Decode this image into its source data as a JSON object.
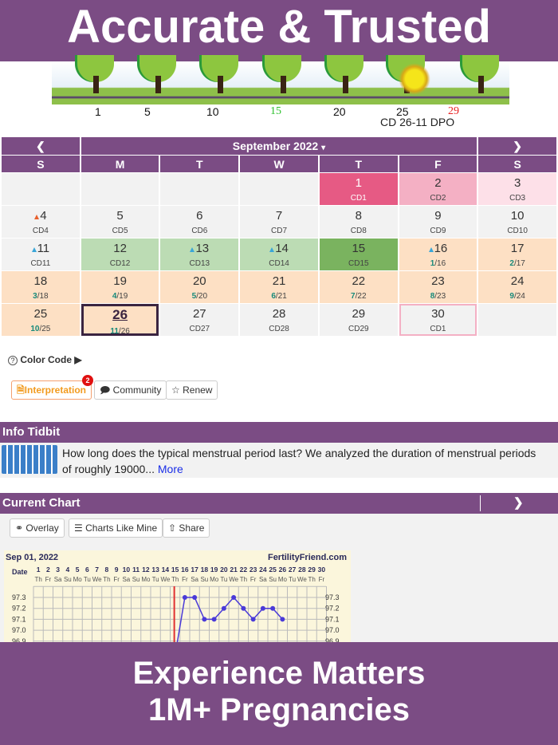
{
  "top_banner": "Accurate & Trusted",
  "bottom_banner": {
    "line1": "Experience Matters",
    "line2": "1M+ Pregnancies"
  },
  "cycle_strip": {
    "day_labels": [
      {
        "v": "1",
        "c": "#111"
      },
      {
        "v": "5",
        "c": "#111"
      },
      {
        "v": "10",
        "c": "#111"
      },
      {
        "v": "15",
        "c": "#2ec02e"
      },
      {
        "v": "20",
        "c": "#111"
      },
      {
        "v": "25",
        "c": "#111"
      },
      {
        "v": "29",
        "c": "#e82020"
      }
    ],
    "status": "CD 26-11 DPO"
  },
  "calendar": {
    "prev_icon": "chevron-left-icon",
    "next_icon": "chevron-right-icon",
    "month": "September 2022",
    "dropdown": "▾",
    "weekdays": [
      "S",
      "M",
      "T",
      "W",
      "T",
      "F",
      "S"
    ],
    "weeks": [
      [
        {},
        {},
        {},
        {},
        {
          "d": "1",
          "s": "CD1",
          "bg": "#e65a84",
          "fg": "#fff"
        },
        {
          "d": "2",
          "s": "CD2",
          "bg": "#f4b0c4"
        },
        {
          "d": "3",
          "s": "CD3",
          "bg": "#fde0e8"
        }
      ],
      [
        {
          "d": "4",
          "s": "CD4",
          "mark": "red"
        },
        {
          "d": "5",
          "s": "CD5"
        },
        {
          "d": "6",
          "s": "CD6"
        },
        {
          "d": "7",
          "s": "CD7"
        },
        {
          "d": "8",
          "s": "CD8"
        },
        {
          "d": "9",
          "s": "CD9"
        },
        {
          "d": "10",
          "s": "CD10"
        }
      ],
      [
        {
          "d": "11",
          "s": "CD11",
          "mark": "blue"
        },
        {
          "d": "12",
          "s": "CD12",
          "bg": "#bcdcb4"
        },
        {
          "d": "13",
          "s": "CD13",
          "bg": "#bcdcb4",
          "mark": "blue"
        },
        {
          "d": "14",
          "s": "CD14",
          "bg": "#bcdcb4",
          "mark": "blue"
        },
        {
          "d": "15",
          "s": "CD15",
          "bg": "#7ab35f"
        },
        {
          "d": "16",
          "dpo": "1",
          "s": "/16",
          "bg": "#fde0c4",
          "mark": "blue"
        },
        {
          "d": "17",
          "dpo": "2",
          "s": "/17",
          "bg": "#fde0c4"
        }
      ],
      [
        {
          "d": "18",
          "dpo": "3",
          "s": "/18",
          "bg": "#fde0c4"
        },
        {
          "d": "19",
          "dpo": "4",
          "s": "/19",
          "bg": "#fde0c4"
        },
        {
          "d": "20",
          "dpo": "5",
          "s": "/20",
          "bg": "#fde0c4"
        },
        {
          "d": "21",
          "dpo": "6",
          "s": "/21",
          "bg": "#fde0c4"
        },
        {
          "d": "22",
          "dpo": "7",
          "s": "/22",
          "bg": "#fde0c4"
        },
        {
          "d": "23",
          "dpo": "8",
          "s": "/23",
          "bg": "#fde0c4"
        },
        {
          "d": "24",
          "dpo": "9",
          "s": "/24",
          "bg": "#fde0c4"
        }
      ],
      [
        {
          "d": "25",
          "dpo": "10",
          "s": "/25",
          "bg": "#fde0c4"
        },
        {
          "d": "26",
          "dpo": "11",
          "s": "/26",
          "bg": "#fde0c4",
          "today": true
        },
        {
          "d": "27",
          "s": "CD27"
        },
        {
          "d": "28",
          "s": "CD28"
        },
        {
          "d": "29",
          "s": "CD29"
        },
        {
          "d": "30",
          "s": "CD1",
          "predicted": true
        },
        {}
      ]
    ]
  },
  "color_code": {
    "label": "Color Code ▶",
    "icon": "question-circle-icon"
  },
  "actions": {
    "interpretation": "Interpretation",
    "badge": "2",
    "community": "Community",
    "renew": "Renew"
  },
  "info_tidbit": {
    "title": "Info Tidbit",
    "text": "How long does the typical menstrual period last? We analyzed the duration of menstrual periods of roughly 19000...",
    "more": "More"
  },
  "current_chart": {
    "title": "Current Chart",
    "overlay": "Overlay",
    "charts_like_mine": "Charts Like Mine",
    "share": "Share"
  },
  "chart_data": {
    "type": "line",
    "title": "Sep 01, 2022",
    "brand": "FertilityFriend.com",
    "xlabel": "Date",
    "days": [
      1,
      2,
      3,
      4,
      5,
      6,
      7,
      8,
      9,
      10,
      11,
      12,
      13,
      14,
      15,
      16,
      17,
      18,
      19,
      20,
      21,
      22,
      23,
      24,
      25,
      26,
      27,
      28,
      29,
      30
    ],
    "weekdays": [
      "Th",
      "Fr",
      "Sa",
      "Su",
      "Mo",
      "Tu",
      "We",
      "Th",
      "Fr",
      "Sa",
      "Su",
      "Mo",
      "Tu",
      "We",
      "Th",
      "Fr",
      "Sa",
      "Su",
      "Mo",
      "Tu",
      "We",
      "Th",
      "Fr",
      "Sa",
      "Su",
      "Mo",
      "Tu",
      "We",
      "Th",
      "Fr"
    ],
    "yticks": [
      "97.3",
      "97.2",
      "97.1",
      "97.0",
      "96.9"
    ],
    "ylim": [
      96.9,
      97.3
    ],
    "ovulation_day": 15,
    "line_color": "#4a3ad8",
    "ovulation_color": "#e03030",
    "points": [
      {
        "x": 16,
        "y": 97.3
      },
      {
        "x": 17,
        "y": 97.3
      },
      {
        "x": 18,
        "y": 97.1
      },
      {
        "x": 19,
        "y": 97.1
      },
      {
        "x": 20,
        "y": 97.2
      },
      {
        "x": 21,
        "y": 97.3
      },
      {
        "x": 22,
        "y": 97.2
      },
      {
        "x": 23,
        "y": 97.1
      },
      {
        "x": 24,
        "y": 97.2
      },
      {
        "x": 25,
        "y": 97.2
      },
      {
        "x": 26,
        "y": 97.1
      }
    ]
  }
}
